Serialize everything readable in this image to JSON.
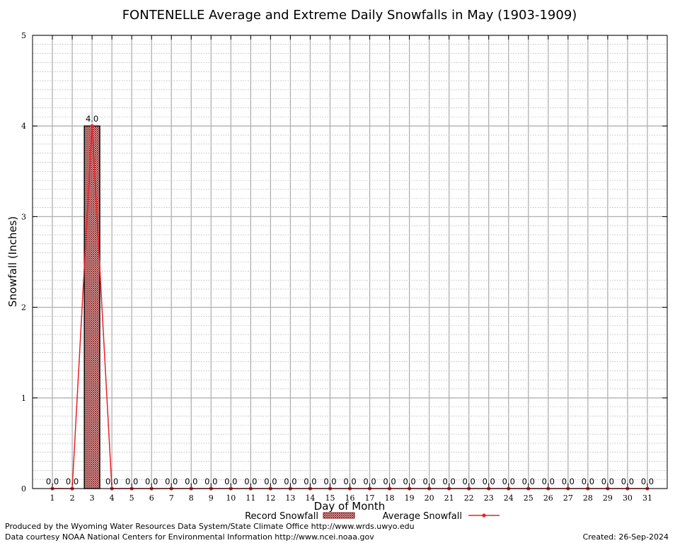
{
  "chart_data": {
    "type": "bar",
    "title": "FONTENELLE Average and Extreme Daily Snowfalls in May (1903-1909)",
    "xlabel": "Day of Month",
    "ylabel": "Snowfall (Inches)",
    "ylim": [
      0,
      5
    ],
    "y_ticks": [
      "0",
      "1",
      "2",
      "3",
      "4",
      "5"
    ],
    "grid": true,
    "categories": [
      "1",
      "2",
      "3",
      "4",
      "5",
      "6",
      "7",
      "8",
      "9",
      "10",
      "11",
      "12",
      "13",
      "14",
      "15",
      "16",
      "17",
      "18",
      "19",
      "20",
      "21",
      "22",
      "23",
      "24",
      "25",
      "26",
      "27",
      "28",
      "29",
      "30",
      "31"
    ],
    "series": [
      {
        "name": "Record Snowfall",
        "kind": "bar",
        "values": [
          0,
          0,
          4.0,
          0,
          0,
          0,
          0,
          0,
          0,
          0,
          0,
          0,
          0,
          0,
          0,
          0,
          0,
          0,
          0,
          0,
          0,
          0,
          0,
          0,
          0,
          0,
          0,
          0,
          0,
          0,
          0
        ],
        "labels": [
          "0.0",
          "0.0",
          "4.0",
          "0.0",
          "0.0",
          "0.0",
          "0.0",
          "0.0",
          "0.0",
          "0.0",
          "0.0",
          "0.0",
          "0.0",
          "0.0",
          "0.0",
          "0.0",
          "0.0",
          "0.0",
          "0.0",
          "0.0",
          "0.0",
          "0.0",
          "0.0",
          "0.0",
          "0.0",
          "0.0",
          "0.0",
          "0.0",
          "0.0",
          "0.0",
          "0.0"
        ]
      },
      {
        "name": "Average Snowfall",
        "kind": "line",
        "values": [
          0,
          0,
          4.0,
          0,
          0,
          0,
          0,
          0,
          0,
          0,
          0,
          0,
          0,
          0,
          0,
          0,
          0,
          0,
          0,
          0,
          0,
          0,
          0,
          0,
          0,
          0,
          0,
          0,
          0,
          0,
          0
        ]
      }
    ],
    "colors": {
      "bar": "#8b1a1a",
      "line": "#e8202a",
      "grid": "#b0b0b0"
    },
    "legend_position": "bottom-center"
  },
  "footer": {
    "left_line1": "Produced by the Wyoming Water Resources Data System/State Climate Office http://www.wrds.uwyo.edu",
    "left_line2": "Data courtesy NOAA National Centers for Environmental Information http://www.ncei.noaa.gov",
    "created": "Created:  26-Sep-2024"
  }
}
